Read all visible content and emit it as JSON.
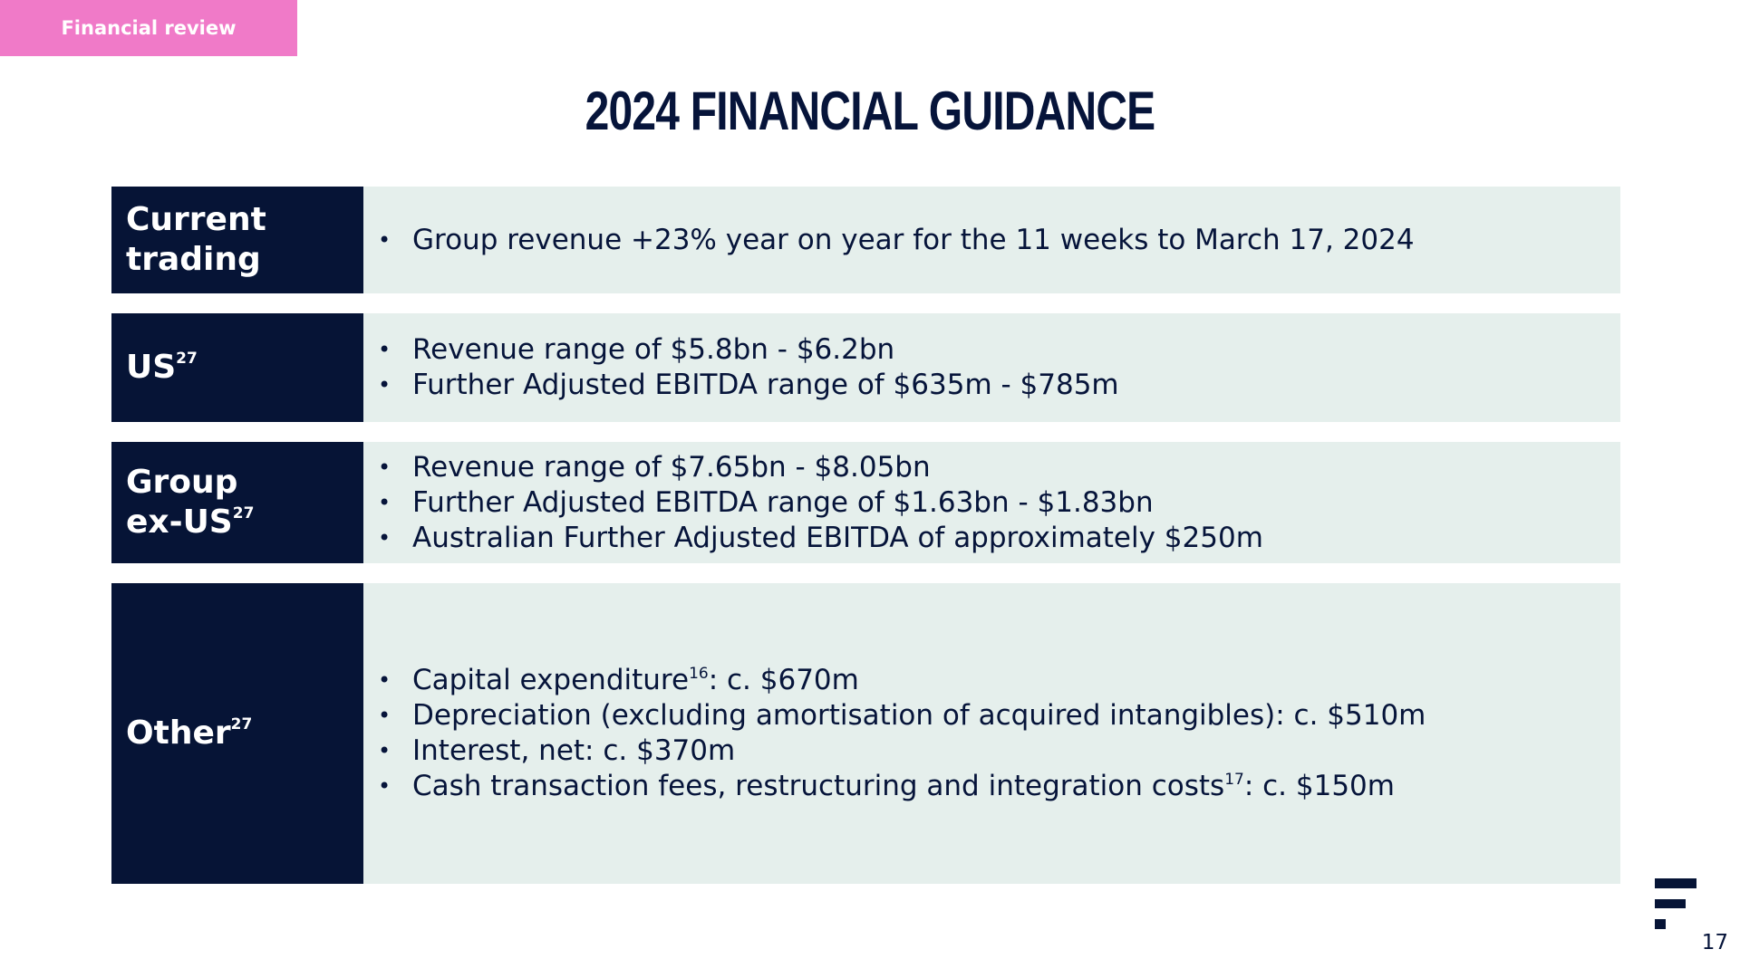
{
  "header": {
    "section_tab": "Financial review",
    "title": "2024 FINANCIAL GUIDANCE"
  },
  "rows": [
    {
      "label_lines": [
        "Current",
        "trading"
      ],
      "label_sup": "",
      "items": [
        {
          "text": "Group revenue +23% year on year for the 11 weeks to March 17, 2024"
        }
      ]
    },
    {
      "label_lines": [
        "US"
      ],
      "label_sup": "27",
      "items": [
        {
          "text": "Revenue range of $5.8bn - $6.2bn"
        },
        {
          "text": "Further Adjusted EBITDA range of $635m - $785m"
        }
      ]
    },
    {
      "label_lines": [
        "Group",
        "ex-US"
      ],
      "label_sup": "27",
      "items": [
        {
          "text": "Revenue range of $7.65bn - $8.05bn"
        },
        {
          "text": "Further Adjusted EBITDA range of $1.63bn - $1.83bn"
        },
        {
          "text": "Australian Further Adjusted EBITDA of approximately $250m"
        }
      ]
    },
    {
      "label_lines": [
        "Other"
      ],
      "label_sup": "27",
      "items": [
        {
          "text": "Capital expenditure",
          "sup": "16",
          "rest": ": c. $670m"
        },
        {
          "text": "Depreciation (excluding amortisation of acquired intangibles): c. $510m"
        },
        {
          "text": "Interest, net: c. $370m"
        },
        {
          "text": "Cash transaction fees, restructuring and integration costs",
          "sup": "17",
          "rest": ": c. $150m"
        }
      ]
    }
  ],
  "footer": {
    "page_number": "17",
    "logo_icon": "brand-f-logo-icon"
  },
  "colors": {
    "navy": "#061436",
    "pink": "#f07ac8",
    "panel": "#e5efec"
  }
}
